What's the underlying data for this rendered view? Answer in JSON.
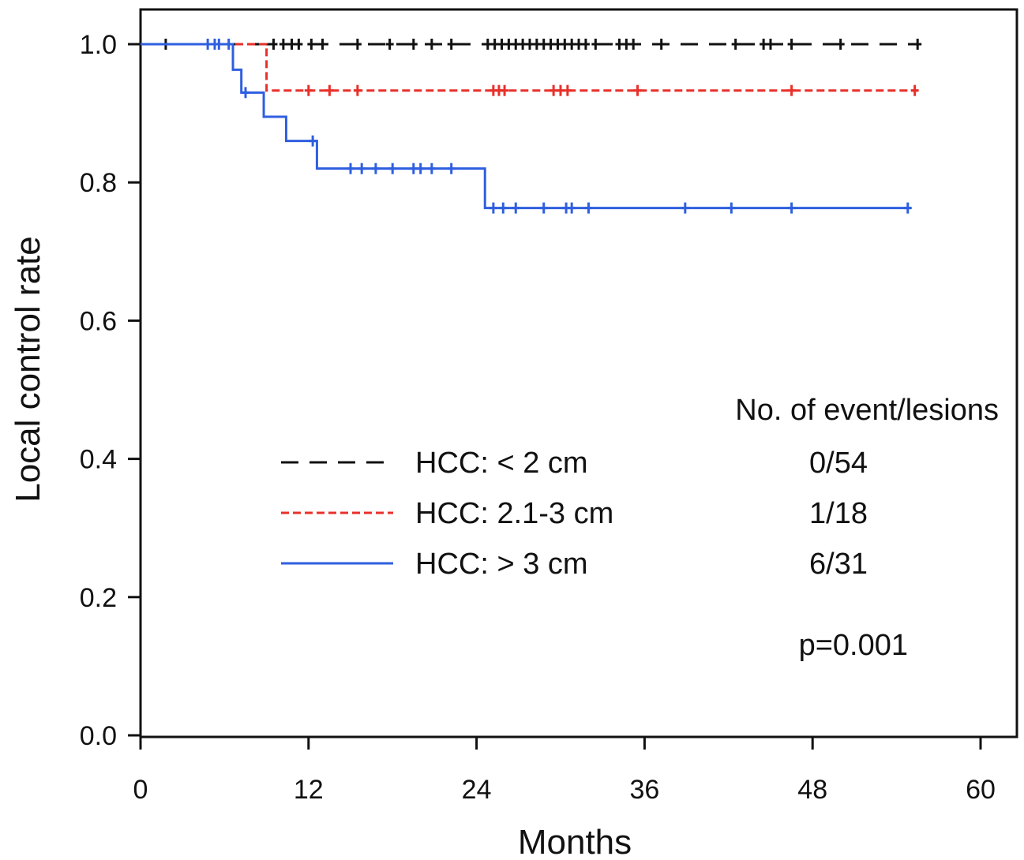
{
  "chart_data": {
    "type": "line",
    "subtype": "kaplan-meier",
    "title": "",
    "xlabel": "Months",
    "ylabel": "Local control rate",
    "xlim": [
      0,
      60
    ],
    "ylim": [
      0,
      1
    ],
    "x_ticks": [
      {
        "value": 0,
        "label": "0"
      },
      {
        "value": 12,
        "label": "12"
      },
      {
        "value": 24,
        "label": "24"
      },
      {
        "value": 36,
        "label": "36"
      },
      {
        "value": 48,
        "label": "48"
      },
      {
        "value": 60,
        "label": "60"
      }
    ],
    "y_ticks": [
      {
        "value": 0.0,
        "label": "0.0"
      },
      {
        "value": 0.2,
        "label": "0.2"
      },
      {
        "value": 0.4,
        "label": "0.4"
      },
      {
        "value": 0.6,
        "label": "0.6"
      },
      {
        "value": 0.8,
        "label": "0.8"
      },
      {
        "value": 1.0,
        "label": "1.0"
      }
    ],
    "grid": false,
    "legend_header": "No. of event/lesions",
    "legend_placement": "bottom-right",
    "series": [
      {
        "name": "HCC: < 2 cm",
        "events": "0/54",
        "color": "#111111",
        "dash": "long-dash",
        "steps": [
          [
            0,
            1.0
          ]
        ],
        "end": 55.5,
        "censored": [
          1.8,
          9.5,
          10.2,
          10.8,
          11.3,
          12.2,
          13.0,
          15.5,
          17.8,
          19.5,
          20.8,
          22.2,
          24.8,
          25.3,
          25.8,
          26.3,
          26.8,
          27.3,
          27.8,
          28.3,
          28.8,
          29.3,
          29.8,
          30.3,
          30.8,
          31.3,
          31.8,
          32.5,
          34.2,
          34.7,
          35.2,
          37.2,
          42.5,
          44.5,
          45.0,
          46.5,
          50.0,
          55.5
        ]
      },
      {
        "name": "HCC: 2.1-3 cm",
        "events": "1/18",
        "color": "#e8302a",
        "dash": "short-dash",
        "steps": [
          [
            0,
            1.0
          ],
          [
            9.0,
            0.933
          ]
        ],
        "end": 55.5,
        "censored": [
          12.0,
          13.5,
          15.5,
          25.2,
          25.6,
          26.0,
          29.5,
          30.0,
          30.5,
          35.5,
          46.5,
          55.3
        ]
      },
      {
        "name": "HCC: > 3 cm",
        "events": "6/31",
        "color": "#2f5fe0",
        "dash": "solid",
        "steps": [
          [
            0,
            1.0
          ],
          [
            6.6,
            0.963
          ],
          [
            7.2,
            0.93
          ],
          [
            8.8,
            0.895
          ],
          [
            10.4,
            0.86
          ],
          [
            12.6,
            0.82
          ],
          [
            24.6,
            0.763
          ]
        ],
        "end": 55.0,
        "censored": [
          4.8,
          5.3,
          5.6,
          6.3,
          7.5,
          12.3,
          15.0,
          15.8,
          16.8,
          18.0,
          19.5,
          20.0,
          20.8,
          22.2,
          25.2,
          25.9,
          26.8,
          28.8,
          30.4,
          30.8,
          32.0,
          38.9,
          42.2,
          46.5,
          54.8
        ]
      }
    ],
    "annotations": [
      {
        "text": "p=0.001"
      }
    ]
  }
}
